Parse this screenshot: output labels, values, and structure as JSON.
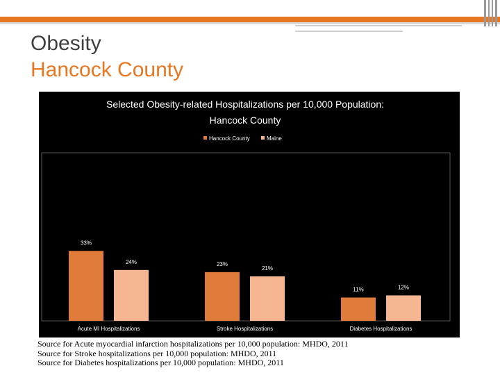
{
  "slide": {
    "title_line1": "Obesity",
    "title_line2": "Hancock County"
  },
  "colors": {
    "accent": "#e87722",
    "series_hancock": "#e07b39",
    "series_maine": "#f6b692",
    "panel": "#000000"
  },
  "chart_data": {
    "type": "bar",
    "title": "Selected Obesity-related Hospitalizations per 10,000 Population: Hancock County",
    "title_lines": [
      "Selected Obesity-related Hospitalizations per 10,000 Population:",
      "Hancock County"
    ],
    "categories": [
      "Acute MI Hospitalizations",
      "Stroke Hospitalizations",
      "Diabetes Hospitalizations"
    ],
    "series": [
      {
        "name": "Hancock County",
        "values": [
          33,
          23,
          11
        ],
        "labels": [
          "33%",
          "23%",
          "11%"
        ],
        "color": "#e07b39"
      },
      {
        "name": "Maine",
        "values": [
          24,
          21,
          12
        ],
        "labels": [
          "24%",
          "21%",
          "12%"
        ],
        "color": "#f6b692"
      }
    ],
    "ylim": [
      0,
      35
    ],
    "legend_position": "top",
    "grid": false
  },
  "sources": [
    "Source for Acute myocardial infarction hospitalizations per 10,000 population: MHDO, 2011",
    "Source for Stroke hospitalizations per 10,000 population: MHDO, 2011",
    "Source for Diabetes hospitalizations per 10,000 population: MHDO, 2011"
  ]
}
